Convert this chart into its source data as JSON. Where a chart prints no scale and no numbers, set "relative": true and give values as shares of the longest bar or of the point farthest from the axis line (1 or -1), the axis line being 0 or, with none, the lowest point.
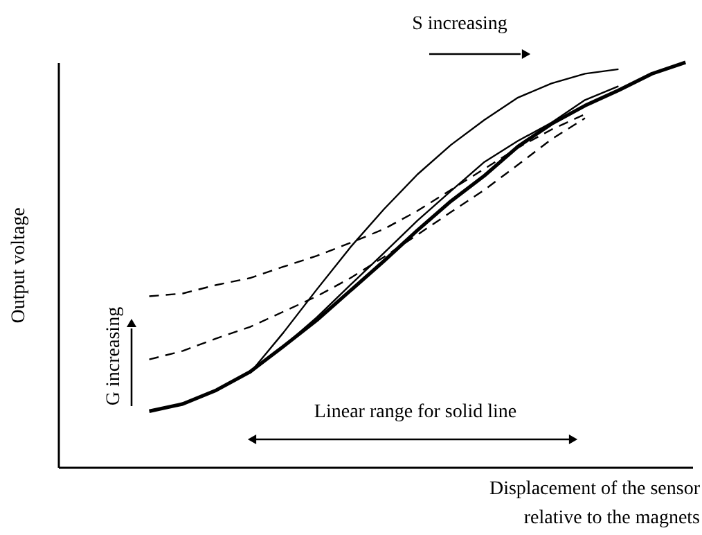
{
  "chart_data": {
    "type": "line",
    "relative": true,
    "xlabel": "Displacement of the sensor\nrelative to the magnets",
    "ylabel": "Output voltage",
    "annotations": [
      "S increasing",
      "G increasing",
      "Linear range for solid line"
    ],
    "categories": [
      null,
      null,
      null,
      null,
      null,
      null,
      null,
      null,
      null,
      null,
      null,
      null,
      null,
      null,
      null,
      null,
      null,
      null,
      null
    ],
    "series": [
      {
        "color": "#000000",
        "line_style": "solid",
        "values": [
          null,
          null,
          0.138,
          0.156,
          0.19,
          0.235,
          0.298,
          0.363,
          0.436,
          0.509,
          0.585,
          0.657,
          0.72,
          0.792,
          0.848,
          0.893,
          0.931,
          0.972,
          1.0
        ]
      },
      {
        "color": "#000000",
        "line_style": "solid",
        "values": [
          null,
          null,
          null,
          null,
          null,
          0.232,
          0.332,
          0.439,
          0.543,
          0.637,
          0.723,
          0.796,
          0.858,
          0.913,
          0.948,
          0.972,
          0.983,
          null,
          null
        ]
      },
      {
        "color": "#000000",
        "line_style": "solid",
        "values": [
          null,
          null,
          null,
          null,
          null,
          0.232,
          0.298,
          0.37,
          0.45,
          0.529,
          0.609,
          0.682,
          0.754,
          0.806,
          0.851,
          0.907,
          0.941,
          null,
          null
        ]
      },
      {
        "color": "#000000",
        "line_style": "dashed",
        "values": [
          null,
          null,
          0.422,
          0.429,
          0.45,
          0.467,
          0.495,
          0.522,
          0.554,
          0.588,
          0.633,
          0.685,
          0.737,
          0.789,
          0.834,
          0.872,
          null,
          null,
          null
        ]
      },
      {
        "color": "#000000",
        "line_style": "dashed",
        "values": [
          null,
          null,
          0.266,
          0.287,
          0.318,
          0.346,
          0.384,
          0.422,
          0.467,
          0.519,
          0.574,
          0.63,
          0.685,
          0.747,
          0.81,
          0.862,
          null,
          null,
          null
        ]
      }
    ]
  }
}
